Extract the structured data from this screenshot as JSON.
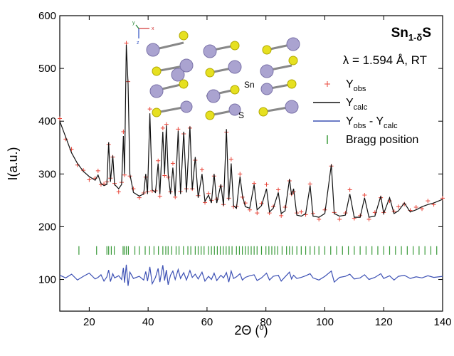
{
  "chart_data": {
    "type": "line",
    "title": [
      "Sn",
      "1-δ",
      "S"
    ],
    "annotations": {
      "wavelength": "λ = 1.594 Å, RT",
      "sn_label": "Sn",
      "s_label": "S",
      "axis_x": "x",
      "axis_y": "y",
      "axis_z": "z"
    },
    "x_label": [
      "2Θ (",
      "o",
      ")"
    ],
    "y_label": "I(a.u.)",
    "xlim": [
      10,
      140
    ],
    "xticks": [
      20,
      40,
      60,
      80,
      100,
      120,
      140
    ],
    "ylim": [
      40,
      600
    ],
    "yticks": [
      100,
      200,
      300,
      400,
      500,
      600
    ],
    "x": [
      10,
      12,
      14,
      16,
      18,
      20,
      22,
      23,
      24,
      25,
      26,
      26.6,
      27.2,
      28,
      28.6,
      30,
      31,
      31.6,
      32,
      32.6,
      33.2,
      33.8,
      35,
      37,
      38.5,
      39.2,
      39.8,
      40.6,
      41.4,
      42.5,
      43.4,
      44,
      45,
      45.6,
      46.2,
      46.8,
      47.6,
      48.4,
      49.2,
      50.2,
      51,
      52.1,
      53,
      54.2,
      55,
      56,
      57,
      58.3,
      59.3,
      60.5,
      61.5,
      62.4,
      63.3,
      64.7,
      65.6,
      66.6,
      67.4,
      68.2,
      69,
      70,
      71.2,
      72,
      73,
      74.5,
      76,
      77,
      78.5,
      80.2,
      81.2,
      82.5,
      84.2,
      85.2,
      86.5,
      88,
      88.7,
      89.4,
      90.5,
      92,
      93.5,
      95,
      96,
      98,
      100,
      102.2,
      103.2,
      105,
      107,
      108.5,
      110,
      112,
      113.5,
      115,
      117,
      119,
      120,
      122,
      123.5,
      125,
      127,
      129,
      131,
      133,
      135,
      137,
      140
    ],
    "series": [
      {
        "name": [
          "Y",
          "obs"
        ],
        "color": "#e8463a",
        "marker": "+",
        "values": [
          405,
          366,
          347,
          317,
          307,
          289,
          292,
          306,
          280,
          281,
          285,
          356,
          292,
          332,
          282,
          266,
          284,
          380,
          298,
          548,
          475,
          296,
          272,
          255,
          264,
          294,
          266,
          423,
          268,
          268,
          325,
          258,
          387,
          297,
          394,
          294,
          266,
          320,
          256,
          385,
          267,
          376,
          272,
          387,
          272,
          326,
          259,
          308,
          246,
          263,
          250,
          296,
          252,
          277,
          242,
          379,
          254,
          328,
          238,
          238,
          300,
          256,
          245,
          232,
          282,
          226,
          244,
          280,
          226,
          238,
          270,
          221,
          237,
          287,
          262,
          266,
          226,
          228,
          223,
          281,
          225,
          214,
          232,
          315,
          227,
          214,
          226,
          270,
          216,
          221,
          260,
          214,
          227,
          255,
          227,
          249,
          229,
          238,
          243,
          231,
          237,
          234,
          249,
          242,
          254
        ]
      },
      {
        "name": [
          "Y",
          "calc"
        ],
        "color": "#111111",
        "marker": "line",
        "values": [
          400,
          370,
          340,
          320,
          305,
          295,
          288,
          298,
          282,
          278,
          280,
          360,
          285,
          335,
          280,
          272,
          280,
          372,
          300,
          545,
          470,
          300,
          265,
          258,
          262,
          300,
          262,
          415,
          270,
          265,
          320,
          262,
          380,
          300,
          392,
          300,
          262,
          312,
          258,
          382,
          262,
          380,
          265,
          390,
          270,
          332,
          255,
          300,
          248,
          260,
          245,
          300,
          245,
          280,
          240,
          385,
          250,
          320,
          240,
          235,
          295,
          260,
          238,
          235,
          280,
          232,
          240,
          272,
          228,
          235,
          265,
          225,
          230,
          290,
          260,
          272,
          222,
          220,
          225,
          278,
          220,
          218,
          225,
          318,
          225,
          220,
          222,
          262,
          218,
          218,
          255,
          218,
          220,
          258,
          225,
          255,
          225,
          230,
          245,
          228,
          232,
          238,
          242,
          245,
          252
        ]
      },
      {
        "name": [
          "Y",
          "obs",
          " - Y",
          "calc"
        ],
        "color": "#3c50b4",
        "marker": "line",
        "values": [
          108,
          103,
          110,
          99,
          106,
          112,
          101,
          104,
          109,
          97,
          105,
          118,
          96,
          111,
          103,
          107,
          100,
          122,
          94,
          128,
          88,
          114,
          102,
          106,
          99,
          115,
          97,
          124,
          92,
          104,
          121,
          95,
          127,
          98,
          118,
          90,
          108,
          116,
          100,
          119,
          102,
          113,
          99,
          117,
          104,
          110,
          101,
          114,
          97,
          106,
          100,
          112,
          98,
          108,
          103,
          113,
          95,
          116,
          102,
          105,
          111,
          99,
          104,
          107,
          109,
          98,
          103,
          112,
          99,
          106,
          108,
          97,
          105,
          114,
          101,
          108,
          102,
          104,
          107,
          111,
          103,
          99,
          106,
          116,
          95,
          104,
          106,
          110,
          101,
          103,
          109,
          100,
          104,
          111,
          102,
          107,
          99,
          106,
          108,
          102,
          105,
          103,
          107,
          104,
          106
        ]
      },
      {
        "name": [
          "Bragg position"
        ],
        "color": "#3a9a3a",
        "marker": "tick",
        "x": [
          16.5,
          22.5,
          26,
          26.6,
          27.5,
          28.5,
          31.5,
          32,
          32.6,
          33.3,
          35.5,
          37,
          39,
          40.5,
          42,
          43.5,
          45,
          46,
          46.8,
          48,
          49.5,
          50.5,
          52,
          53.5,
          54.5,
          56,
          57,
          58,
          59,
          60.5,
          61.5,
          62.5,
          63.5,
          64.5,
          65.5,
          66.5,
          67.5,
          68.5,
          70,
          71,
          72,
          73,
          74,
          75,
          76,
          77,
          78.5,
          80,
          81,
          82,
          83,
          84,
          85.5,
          87,
          88,
          89,
          90.5,
          92,
          93.5,
          95,
          96.5,
          98,
          100,
          102,
          104,
          106,
          108,
          110,
          112,
          114,
          116,
          118,
          120,
          122,
          124,
          126,
          128,
          130,
          132,
          134,
          136,
          138
        ],
        "values": [
          155,
          155,
          155,
          155,
          155,
          155,
          155,
          155,
          155,
          155,
          155,
          155,
          155,
          155,
          155,
          155,
          155,
          155,
          155,
          155,
          155,
          155,
          155,
          155,
          155,
          155,
          155,
          155,
          155,
          155,
          155,
          155,
          155,
          155,
          155,
          155,
          155,
          155,
          155,
          155,
          155,
          155,
          155,
          155,
          155,
          155,
          155,
          155,
          155,
          155,
          155,
          155,
          155,
          155,
          155,
          155,
          155,
          155,
          155,
          155,
          155,
          155,
          155,
          155,
          155,
          155,
          155,
          155,
          155,
          155,
          155,
          155,
          155,
          155,
          155,
          155,
          155,
          155,
          155,
          155,
          155,
          155
        ]
      }
    ],
    "legend": "upper-right"
  }
}
